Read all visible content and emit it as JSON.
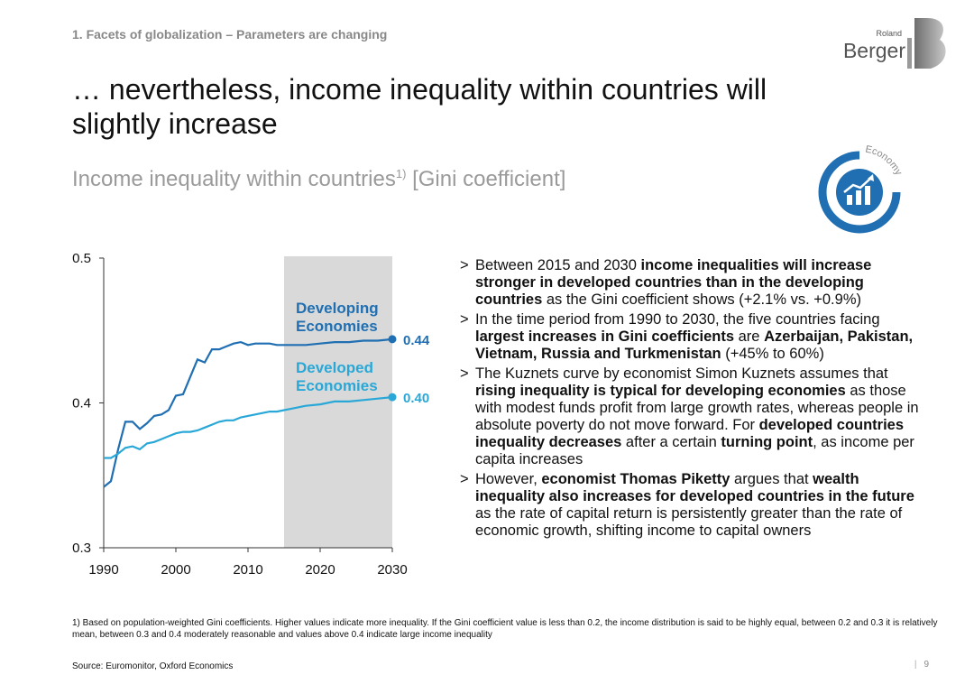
{
  "header": {
    "section": "1. Facets of globalization – Parameters are changing",
    "brand_small": "Roland",
    "brand_big": "Berger"
  },
  "title": "… nevertheless, income inequality within countries will slightly increase",
  "subtitle": {
    "main": "Income inequality within countries",
    "sup": "1)",
    "unit": " [Gini coefficient]"
  },
  "badge": {
    "label": "Economy",
    "icon": "bar-chart-growth-icon",
    "color": "#1f6fb2"
  },
  "chart_data": {
    "type": "line",
    "xlim": [
      1990,
      2030
    ],
    "ylim": [
      0.3,
      0.5
    ],
    "xticks": [
      1990,
      2000,
      2010,
      2020,
      2030
    ],
    "xtick_labels": [
      "1990",
      "2000",
      "2010",
      "2020",
      "2030"
    ],
    "yticks": [
      0.3,
      0.4,
      0.5
    ],
    "ytick_labels": [
      "0.3",
      "0.4",
      "0.5"
    ],
    "grid": false,
    "forecast_shade": {
      "from": 2015,
      "to": 2030,
      "color": "#d9d9d9"
    },
    "series": [
      {
        "name": "Developing Economies",
        "label_lines": [
          "Developing",
          "Economies"
        ],
        "color": "#1f6fb2",
        "end_label": "0.44",
        "x": [
          1990,
          1991,
          1992,
          1993,
          1994,
          1995,
          1996,
          1997,
          1998,
          1999,
          2000,
          2001,
          2002,
          2003,
          2004,
          2005,
          2006,
          2007,
          2008,
          2009,
          2010,
          2011,
          2012,
          2013,
          2014,
          2015,
          2016,
          2018,
          2020,
          2022,
          2024,
          2026,
          2028,
          2030
        ],
        "values": [
          0.342,
          0.346,
          0.368,
          0.387,
          0.387,
          0.382,
          0.386,
          0.391,
          0.392,
          0.395,
          0.405,
          0.406,
          0.418,
          0.43,
          0.428,
          0.437,
          0.437,
          0.439,
          0.441,
          0.442,
          0.44,
          0.441,
          0.441,
          0.441,
          0.44,
          0.44,
          0.44,
          0.44,
          0.441,
          0.442,
          0.442,
          0.443,
          0.443,
          0.444
        ]
      },
      {
        "name": "Developed Economies",
        "label_lines": [
          "Developed",
          "Economies"
        ],
        "color": "#29a8d8",
        "end_label": "0.40",
        "x": [
          1990,
          1991,
          1992,
          1993,
          1994,
          1995,
          1996,
          1997,
          1998,
          1999,
          2000,
          2001,
          2002,
          2003,
          2004,
          2005,
          2006,
          2007,
          2008,
          2009,
          2010,
          2011,
          2012,
          2013,
          2014,
          2015,
          2016,
          2018,
          2020,
          2022,
          2024,
          2026,
          2028,
          2030
        ],
        "values": [
          0.362,
          0.362,
          0.365,
          0.369,
          0.37,
          0.368,
          0.372,
          0.373,
          0.375,
          0.377,
          0.379,
          0.38,
          0.38,
          0.381,
          0.383,
          0.385,
          0.387,
          0.388,
          0.388,
          0.39,
          0.391,
          0.392,
          0.393,
          0.394,
          0.394,
          0.395,
          0.396,
          0.398,
          0.399,
          0.401,
          0.401,
          0.402,
          0.403,
          0.404
        ]
      }
    ]
  },
  "bullets": [
    [
      {
        "t": "Between 2015 and 2030 ",
        "b": false
      },
      {
        "t": "income inequalities will increase stronger in developed countries than in the developing countries",
        "b": true
      },
      {
        "t": " as the Gini coefficient shows (+2.1% vs. +0.9%)",
        "b": false
      }
    ],
    [
      {
        "t": "In the time period from 1990 to 2030, the five countries facing ",
        "b": false
      },
      {
        "t": "largest increases in Gini coefficients",
        "b": true
      },
      {
        "t": " are ",
        "b": false
      },
      {
        "t": "Azerbaijan, Pakistan, Vietnam, Russia and Turkmenistan",
        "b": true
      },
      {
        "t": " (+45% to 60%)",
        "b": false
      }
    ],
    [
      {
        "t": "The Kuznets curve by economist Simon Kuznets assumes that ",
        "b": false
      },
      {
        "t": "rising inequality is typical for developing economies",
        "b": true
      },
      {
        "t": " as those with modest funds profit from large growth rates, whereas people in absolute poverty do not move forward. For ",
        "b": false
      },
      {
        "t": "developed countries inequality decreases",
        "b": true
      },
      {
        "t": " after a certain ",
        "b": false
      },
      {
        "t": "turning point",
        "b": true
      },
      {
        "t": ", as income per capita increases",
        "b": false
      }
    ],
    [
      {
        "t": "However, ",
        "b": false
      },
      {
        "t": "economist Thomas Piketty",
        "b": true
      },
      {
        "t": " argues that ",
        "b": false
      },
      {
        "t": "wealth inequality also increases for developed countries in the future",
        "b": true
      },
      {
        "t": " as the rate of capital return is persistently greater than the rate of economic growth, shifting income to capital owners",
        "b": false
      }
    ]
  ],
  "footnote": "1) Based on population-weighted Gini coefficients. Higher values indicate more inequality. If the Gini coefficient value is less than 0.2, the income distribution is said to be highly equal, between 0.2 and 0.3 it is relatively mean, between 0.3 and 0.4 moderately reasonable and values above 0.4 indicate large income inequality",
  "source": "Source: Euromonitor, Oxford Economics",
  "page_number": "9"
}
